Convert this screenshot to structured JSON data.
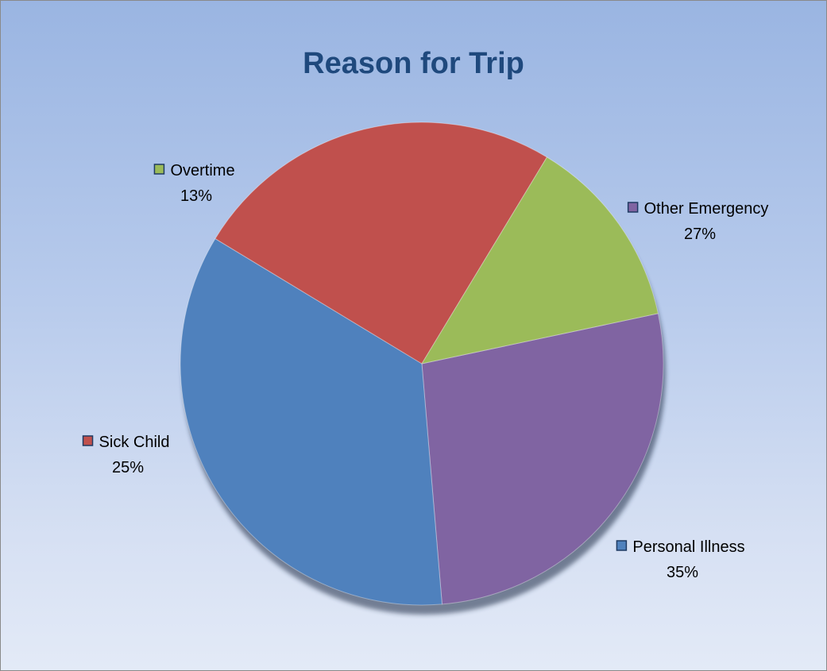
{
  "chart_data": {
    "type": "pie",
    "title": "Reason for Trip",
    "slices": [
      {
        "label": "Other Emergency",
        "value": 27,
        "percent_label": "27%",
        "color": "#8064a2"
      },
      {
        "label": "Personal Illness",
        "value": 35,
        "percent_label": "35%",
        "color": "#4f81bd"
      },
      {
        "label": "Sick Child",
        "value": 25,
        "percent_label": "25%",
        "color": "#c0504d"
      },
      {
        "label": "Overtime",
        "value": 13,
        "percent_label": "13%",
        "color": "#9bbb59"
      }
    ],
    "start_angle_deg": -12,
    "direction": "clockwise",
    "labels_outside": true,
    "shadow": true
  }
}
